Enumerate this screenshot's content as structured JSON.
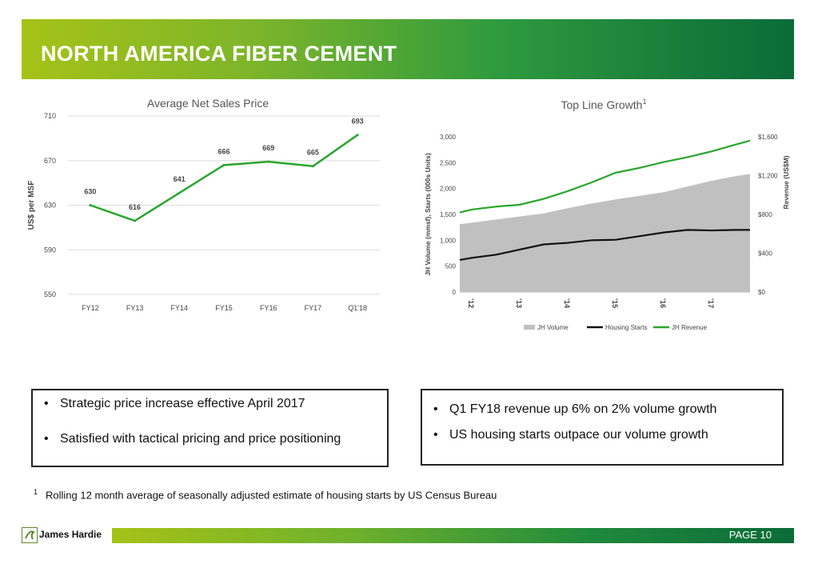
{
  "header": {
    "title": "NORTH AMERICA FIBER CEMENT"
  },
  "chart_data": [
    {
      "type": "line",
      "title": "Average Net Sales Price",
      "xlabel": "",
      "ylabel": "US$ per MSF",
      "categories": [
        "FY12",
        "FY13",
        "FY14",
        "FY15",
        "FY16",
        "FY17",
        "Q1'18"
      ],
      "values": [
        630,
        616,
        641,
        666,
        669,
        665,
        693
      ],
      "labels": [
        "630",
        "616",
        "641",
        "666",
        "669",
        "665",
        "693"
      ],
      "yticks": [
        "710",
        "670",
        "630",
        "590",
        "550"
      ],
      "ylim": [
        550,
        710
      ],
      "color": "#2aa52c",
      "grid": true
    },
    {
      "type": "area",
      "title": "Top Line Growth",
      "title_superscript": "1",
      "ylabel": "JH Volume (mmsf), Starts (000s Units)",
      "y2label": "Revenue (US$M)",
      "ylim": [
        0,
        3000
      ],
      "y2lim": [
        0,
        1600
      ],
      "yticks": [
        "3,000",
        "2,500",
        "2,000",
        "1,500",
        "1,000",
        "500",
        "0"
      ],
      "y2ticks": [
        "$1,600",
        "$1,200",
        "$800",
        "$400",
        "$0"
      ],
      "xticks": [
        "'12",
        "'13",
        "'14",
        "'15",
        "'16",
        "'17"
      ],
      "x": [
        2011.75,
        2012,
        2012.5,
        2013,
        2013.5,
        2014,
        2014.5,
        2015,
        2015.5,
        2016,
        2016.5,
        2017,
        2017.5,
        2017.8
      ],
      "series": [
        {
          "name": "JH Volume",
          "type": "area",
          "color": "#c0c0c0",
          "values": [
            1310,
            1340,
            1400,
            1460,
            1520,
            1620,
            1710,
            1790,
            1860,
            1930,
            2040,
            2150,
            2240,
            2280
          ]
        },
        {
          "name": "Housing Starts",
          "type": "line",
          "color": "#111111",
          "values": [
            620,
            660,
            720,
            820,
            920,
            950,
            1000,
            1010,
            1080,
            1150,
            1200,
            1190,
            1200,
            1200
          ]
        },
        {
          "name": "JH Revenue",
          "type": "line",
          "color": "#2aa52c",
          "axis": "y2",
          "values": [
            820,
            850,
            880,
            900,
            960,
            1040,
            1130,
            1230,
            1280,
            1340,
            1390,
            1450,
            1520,
            1560
          ]
        }
      ],
      "legend": [
        "JH Volume",
        "Housing Starts",
        "JH Revenue"
      ],
      "legend_position": "bottom"
    }
  ],
  "left_box": {
    "bullets": [
      "Strategic price increase effective April 2017",
      "Satisfied with tactical pricing and price positioning"
    ]
  },
  "right_box": {
    "bullets": [
      "Q1 FY18 revenue up 6% on 2% volume growth",
      "US housing starts outpace our volume growth"
    ]
  },
  "footnote": {
    "marker": "1",
    "text": "Rolling 12 month average of seasonally adjusted estimate of housing starts by US Census Bureau"
  },
  "footer": {
    "company": "James Hardie",
    "page_label": "PAGE  10"
  }
}
